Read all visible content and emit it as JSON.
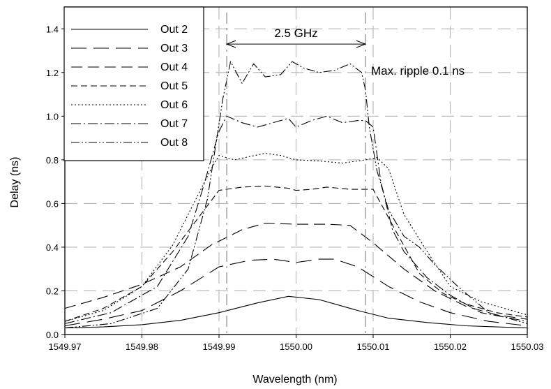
{
  "chart_data": {
    "type": "line",
    "title": "",
    "xlabel": "Wavelength (nm)",
    "ylabel": "Delay (ns)",
    "xlim": [
      1549.97,
      1550.03
    ],
    "ylim": [
      0.0,
      1.5
    ],
    "xticks": [
      1549.97,
      1549.98,
      1549.99,
      1550.0,
      1550.01,
      1550.02,
      1550.03
    ],
    "xtick_labels": [
      "1549.97",
      "1549.98",
      "1549.99",
      "1550.00",
      "1550.01",
      "1550.02",
      "1550.03"
    ],
    "yticks": [
      0.0,
      0.2,
      0.4,
      0.6,
      0.8,
      1.0,
      1.2,
      1.4
    ],
    "ytick_labels": [
      "0.0",
      "0.2",
      "0.4",
      "0.6",
      "0.8",
      "1.0",
      "1.2",
      "1.4"
    ],
    "grid": "dashed",
    "legend_position": "top-left",
    "annotations": {
      "bandwidth": "2.5 GHz",
      "bandwidth_x": [
        1549.991,
        1550.009
      ],
      "bandwidth_y": 1.33,
      "ripple": "Max. ripple 0.1 ns"
    },
    "series": [
      {
        "name": "Out 2",
        "dash": "",
        "width": 1.1,
        "x": [
          1549.97,
          1549.975,
          1549.98,
          1549.985,
          1549.99,
          1549.995,
          1549.999,
          1550.003,
          1550.008,
          1550.012,
          1550.017,
          1550.022,
          1550.026,
          1550.03
        ],
        "y": [
          0.03,
          0.035,
          0.045,
          0.065,
          0.1,
          0.145,
          0.175,
          0.16,
          0.11,
          0.075,
          0.055,
          0.04,
          0.035,
          0.03
        ]
      },
      {
        "name": "Out 3",
        "dash": "22,10",
        "width": 1.1,
        "x": [
          1549.97,
          1549.975,
          1549.98,
          1549.985,
          1549.99,
          1549.994,
          1549.997,
          1550.0,
          1550.003,
          1550.005,
          1550.008,
          1550.012,
          1550.016,
          1550.02,
          1550.025,
          1550.03
        ],
        "y": [
          0.04,
          0.07,
          0.11,
          0.2,
          0.31,
          0.34,
          0.345,
          0.33,
          0.345,
          0.345,
          0.31,
          0.22,
          0.15,
          0.1,
          0.06,
          0.04
        ]
      },
      {
        "name": "Out 4",
        "dash": "16,8",
        "width": 1.1,
        "x": [
          1549.97,
          1549.975,
          1549.98,
          1549.985,
          1549.989,
          1549.993,
          1549.996,
          1550.0,
          1550.004,
          1550.007,
          1550.01,
          1550.014,
          1550.018,
          1550.022,
          1550.026,
          1550.03
        ],
        "y": [
          0.12,
          0.17,
          0.23,
          0.31,
          0.41,
          0.48,
          0.51,
          0.505,
          0.505,
          0.5,
          0.42,
          0.3,
          0.2,
          0.13,
          0.09,
          0.07
        ]
      },
      {
        "name": "Out 5",
        "dash": "9,5",
        "width": 1.1,
        "x": [
          1549.97,
          1549.975,
          1549.98,
          1549.984,
          1549.987,
          1549.99,
          1549.993,
          1549.996,
          1549.999,
          1550.0,
          1550.002,
          1550.004,
          1550.007,
          1550.01,
          1550.013,
          1550.016,
          1550.019,
          1550.022,
          1550.026,
          1550.03
        ],
        "y": [
          0.06,
          0.12,
          0.22,
          0.38,
          0.52,
          0.66,
          0.675,
          0.68,
          0.67,
          0.66,
          0.665,
          0.675,
          0.665,
          0.665,
          0.47,
          0.28,
          0.19,
          0.14,
          0.1,
          0.08
        ]
      },
      {
        "name": "Out 6",
        "dash": "2,3",
        "width": 1.1,
        "x": [
          1549.97,
          1549.975,
          1549.98,
          1549.984,
          1549.987,
          1549.989,
          1549.99,
          1549.992,
          1549.994,
          1549.996,
          1549.998,
          1550.0,
          1550.003,
          1550.006,
          1550.009,
          1550.0105,
          1550.012,
          1550.014,
          1550.017,
          1550.02,
          1550.024,
          1550.03
        ],
        "y": [
          0.06,
          0.11,
          0.22,
          0.41,
          0.62,
          0.76,
          0.82,
          0.8,
          0.815,
          0.83,
          0.82,
          0.8,
          0.795,
          0.785,
          0.8,
          0.81,
          0.76,
          0.55,
          0.38,
          0.22,
          0.15,
          0.09
        ]
      },
      {
        "name": "Out 7",
        "dash": "14,4,2,4",
        "width": 1.1,
        "x": [
          1549.97,
          1549.976,
          1549.982,
          1549.986,
          1549.988,
          1549.99,
          1549.991,
          1549.993,
          1549.995,
          1549.997,
          1549.999,
          1550.0,
          1550.002,
          1550.004,
          1550.006,
          1550.008,
          1550.009,
          1550.01,
          1550.011,
          1550.0125,
          1550.014,
          1550.017,
          1550.02,
          1550.024,
          1550.03
        ],
        "y": [
          0.05,
          0.1,
          0.22,
          0.45,
          0.68,
          0.93,
          1.0,
          0.97,
          0.95,
          0.97,
          0.99,
          0.95,
          0.98,
          1.0,
          0.97,
          0.98,
          0.98,
          0.95,
          0.7,
          0.48,
          0.38,
          0.26,
          0.18,
          0.1,
          0.06
        ]
      },
      {
        "name": "Out 8",
        "dash": "12,3,2,3,2,3",
        "width": 1.1,
        "x": [
          1549.97,
          1549.976,
          1549.982,
          1549.986,
          1549.9885,
          1549.9905,
          1549.9915,
          1549.993,
          1549.9945,
          1549.996,
          1549.998,
          1549.9995,
          1550.001,
          1550.003,
          1550.005,
          1550.007,
          1550.0085,
          1550.009,
          1550.0095,
          1550.0105,
          1550.012,
          1550.014,
          1550.016,
          1550.018,
          1550.021,
          1550.025,
          1550.03
        ],
        "y": [
          0.03,
          0.05,
          0.12,
          0.3,
          0.62,
          1.08,
          1.25,
          1.15,
          1.24,
          1.18,
          1.19,
          1.25,
          1.22,
          1.2,
          1.21,
          1.24,
          1.2,
          1.12,
          0.95,
          0.75,
          0.57,
          0.45,
          0.4,
          0.32,
          0.22,
          0.1,
          0.05
        ]
      }
    ]
  }
}
